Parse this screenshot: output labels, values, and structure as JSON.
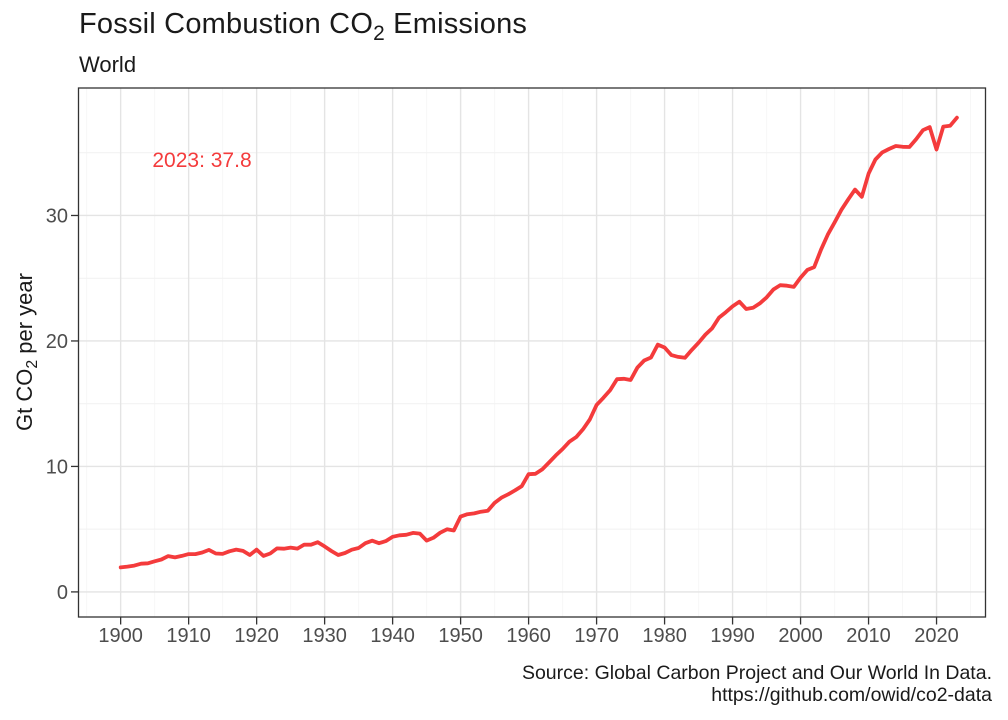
{
  "title": {
    "prefix": "Fossil Combustion CO",
    "sub": "2",
    "suffix": " Emissions"
  },
  "subtitle": "World",
  "y_axis_title": {
    "prefix": "Gt CO",
    "sub": "2",
    "suffix": " per year"
  },
  "annotation": {
    "label": "2023: 37.8"
  },
  "caption": {
    "line1": "Source: Global Carbon Project and Our World In Data.",
    "line2": "https://github.com/owid/co2-data"
  },
  "colors": {
    "line": "#f43b3c",
    "annotation_text": "#f43b3c",
    "grid_major": "#e4e4e4",
    "grid_minor": "#f1f1f1",
    "panel_border": "#333333",
    "tick_mark": "#333333",
    "tick_label": "#4d4d4d",
    "text": "#1a1a1a",
    "background": "#ffffff"
  },
  "chart_data": {
    "type": "line",
    "title": "Fossil Combustion CO2 Emissions",
    "subtitle": "World",
    "xlabel": "",
    "ylabel": "Gt CO2 per year",
    "legend": "none",
    "grid": "on",
    "xlim": [
      1893.8,
      2027.2
    ],
    "ylim": [
      -2.0,
      40.16
    ],
    "x_ticks": [
      1900,
      1910,
      1920,
      1930,
      1940,
      1950,
      1960,
      1970,
      1980,
      1990,
      2000,
      2010,
      2020
    ],
    "y_ticks": [
      0,
      10,
      20,
      30
    ],
    "x_minor_ticks": [
      1895,
      1905,
      1915,
      1925,
      1935,
      1945,
      1955,
      1965,
      1975,
      1985,
      1995,
      2005,
      2015,
      2025
    ],
    "y_minor_ticks": [
      5,
      15,
      25,
      35
    ],
    "annotation": {
      "text": "2023: 37.8",
      "x": 1912,
      "y": 34.3
    },
    "series": [
      {
        "name": "World",
        "color": "#f43b3c",
        "points": [
          [
            1900,
            1.95
          ],
          [
            1901,
            2.02
          ],
          [
            1902,
            2.1
          ],
          [
            1903,
            2.25
          ],
          [
            1904,
            2.28
          ],
          [
            1905,
            2.44
          ],
          [
            1906,
            2.58
          ],
          [
            1907,
            2.85
          ],
          [
            1908,
            2.75
          ],
          [
            1909,
            2.87
          ],
          [
            1910,
            3.01
          ],
          [
            1911,
            3.01
          ],
          [
            1912,
            3.14
          ],
          [
            1913,
            3.35
          ],
          [
            1914,
            3.06
          ],
          [
            1915,
            3.03
          ],
          [
            1916,
            3.24
          ],
          [
            1917,
            3.37
          ],
          [
            1918,
            3.27
          ],
          [
            1919,
            2.94
          ],
          [
            1920,
            3.37
          ],
          [
            1921,
            2.87
          ],
          [
            1922,
            3.06
          ],
          [
            1923,
            3.47
          ],
          [
            1924,
            3.44
          ],
          [
            1925,
            3.53
          ],
          [
            1926,
            3.45
          ],
          [
            1927,
            3.77
          ],
          [
            1928,
            3.76
          ],
          [
            1929,
            3.96
          ],
          [
            1930,
            3.63
          ],
          [
            1931,
            3.26
          ],
          [
            1932,
            2.94
          ],
          [
            1933,
            3.1
          ],
          [
            1934,
            3.36
          ],
          [
            1935,
            3.5
          ],
          [
            1936,
            3.88
          ],
          [
            1937,
            4.08
          ],
          [
            1938,
            3.88
          ],
          [
            1939,
            4.05
          ],
          [
            1940,
            4.39
          ],
          [
            1941,
            4.51
          ],
          [
            1942,
            4.55
          ],
          [
            1943,
            4.7
          ],
          [
            1944,
            4.65
          ],
          [
            1945,
            4.09
          ],
          [
            1946,
            4.31
          ],
          [
            1947,
            4.72
          ],
          [
            1948,
            4.99
          ],
          [
            1949,
            4.89
          ],
          [
            1950,
            6.0
          ],
          [
            1951,
            6.19
          ],
          [
            1952,
            6.26
          ],
          [
            1953,
            6.39
          ],
          [
            1954,
            6.47
          ],
          [
            1955,
            7.09
          ],
          [
            1956,
            7.51
          ],
          [
            1957,
            7.78
          ],
          [
            1958,
            8.09
          ],
          [
            1959,
            8.43
          ],
          [
            1960,
            9.38
          ],
          [
            1961,
            9.41
          ],
          [
            1962,
            9.76
          ],
          [
            1963,
            10.31
          ],
          [
            1964,
            10.88
          ],
          [
            1965,
            11.39
          ],
          [
            1966,
            11.97
          ],
          [
            1967,
            12.34
          ],
          [
            1968,
            12.96
          ],
          [
            1969,
            13.74
          ],
          [
            1970,
            14.9
          ],
          [
            1971,
            15.47
          ],
          [
            1972,
            16.08
          ],
          [
            1973,
            16.95
          ],
          [
            1974,
            16.98
          ],
          [
            1975,
            16.89
          ],
          [
            1976,
            17.88
          ],
          [
            1977,
            18.44
          ],
          [
            1978,
            18.68
          ],
          [
            1979,
            19.71
          ],
          [
            1980,
            19.48
          ],
          [
            1981,
            18.87
          ],
          [
            1982,
            18.73
          ],
          [
            1983,
            18.66
          ],
          [
            1984,
            19.29
          ],
          [
            1985,
            19.86
          ],
          [
            1986,
            20.51
          ],
          [
            1987,
            21.02
          ],
          [
            1988,
            21.86
          ],
          [
            1989,
            22.29
          ],
          [
            1990,
            22.76
          ],
          [
            1991,
            23.13
          ],
          [
            1992,
            22.55
          ],
          [
            1993,
            22.64
          ],
          [
            1994,
            22.99
          ],
          [
            1995,
            23.47
          ],
          [
            1996,
            24.1
          ],
          [
            1997,
            24.44
          ],
          [
            1998,
            24.4
          ],
          [
            1999,
            24.31
          ],
          [
            2000,
            25.05
          ],
          [
            2001,
            25.66
          ],
          [
            2002,
            25.89
          ],
          [
            2003,
            27.27
          ],
          [
            2004,
            28.48
          ],
          [
            2005,
            29.45
          ],
          [
            2006,
            30.45
          ],
          [
            2007,
            31.28
          ],
          [
            2008,
            32.06
          ],
          [
            2009,
            31.49
          ],
          [
            2010,
            33.34
          ],
          [
            2011,
            34.46
          ],
          [
            2012,
            35.03
          ],
          [
            2013,
            35.3
          ],
          [
            2014,
            35.54
          ],
          [
            2015,
            35.47
          ],
          [
            2016,
            35.46
          ],
          [
            2017,
            36.07
          ],
          [
            2018,
            36.8
          ],
          [
            2019,
            37.04
          ],
          [
            2020,
            35.26
          ],
          [
            2021,
            37.08
          ],
          [
            2022,
            37.15
          ],
          [
            2023,
            37.79
          ]
        ]
      }
    ]
  }
}
